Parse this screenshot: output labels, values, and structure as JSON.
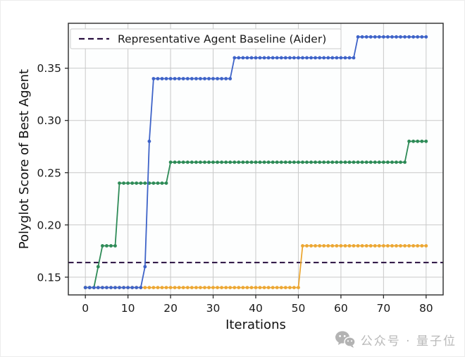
{
  "page": {
    "background": "#ffffff"
  },
  "watermark": {
    "text": "公众号 · 量子位",
    "color": "#b9b9b9",
    "icon": "wechat-icon"
  },
  "chart_data": {
    "type": "line",
    "title": "",
    "xlabel": "Iterations",
    "ylabel": "Polyglot Score of Best Agent",
    "xlim": [
      -4,
      84
    ],
    "ylim": [
      0.133,
      0.393
    ],
    "xticks": [
      0,
      10,
      20,
      30,
      40,
      50,
      60,
      70,
      80
    ],
    "xtick_labels": [
      "0",
      "10",
      "20",
      "30",
      "40",
      "50",
      "60",
      "70",
      "80"
    ],
    "yticks": [
      0.15,
      0.2,
      0.25,
      0.3,
      0.35
    ],
    "ytick_labels": [
      "0.15",
      "0.20",
      "0.25",
      "0.30",
      "0.35"
    ],
    "grid": true,
    "grid_color": "#c9c9c9",
    "plot_bg": "#fdfefe",
    "spine_color": "#2a2a2a",
    "baseline": {
      "label": "Representative Agent Baseline (Aider)",
      "value": 0.164,
      "style": "dashed",
      "color": "#2a1040"
    },
    "legend": {
      "position": "upper left",
      "entries": [
        {
          "label": "Representative Agent Baseline (Aider)",
          "line_style": "dashed",
          "color": "#2a1040"
        }
      ]
    },
    "segments_format": "[x_start, x_end, value] inclusive; one data point (marker) at every integer iteration",
    "series": [
      {
        "name": "agent-orange",
        "color": "#eca733",
        "marker": "circle",
        "segments": [
          [
            0,
            50,
            0.14
          ],
          [
            51,
            80,
            0.18
          ]
        ]
      },
      {
        "name": "agent-green",
        "color": "#2e8b57",
        "marker": "circle",
        "segments": [
          [
            0,
            2,
            0.14
          ],
          [
            3,
            3,
            0.16
          ],
          [
            4,
            7,
            0.18
          ],
          [
            8,
            19,
            0.24
          ],
          [
            20,
            75,
            0.26
          ],
          [
            76,
            80,
            0.28
          ]
        ]
      },
      {
        "name": "agent-blue",
        "color": "#3e63c8",
        "marker": "circle",
        "segments": [
          [
            0,
            13,
            0.14
          ],
          [
            14,
            14,
            0.16
          ],
          [
            15,
            15,
            0.28
          ],
          [
            16,
            34,
            0.34
          ],
          [
            35,
            63,
            0.36
          ],
          [
            64,
            80,
            0.38
          ]
        ]
      }
    ]
  }
}
